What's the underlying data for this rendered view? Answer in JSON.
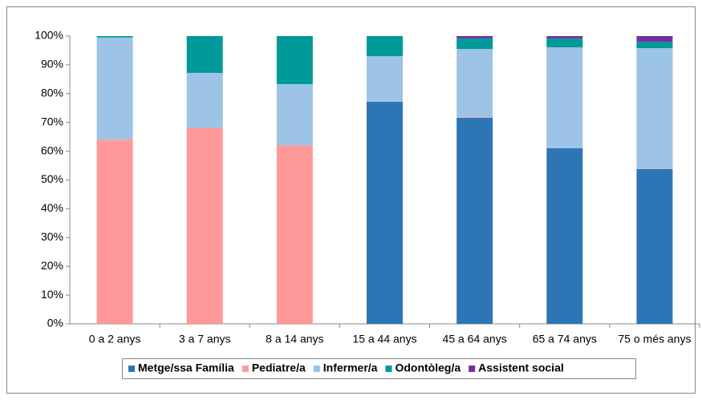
{
  "chart_data": {
    "type": "stacked_bar",
    "categories": [
      "0 a 2 anys",
      "3 a 7 anys",
      "8 a 14 anys",
      "15 a 44 anys",
      "45 a 64 anys",
      "65 a 74 anys",
      "75 o més anys"
    ],
    "series": [
      {
        "name": "Metge/ssa Família",
        "color": "#2e75b6",
        "values": [
          0,
          0,
          0,
          77.2,
          71.6,
          61,
          53.8
        ]
      },
      {
        "name": "Pediatre/a",
        "color": "#ff9999",
        "values": [
          64,
          68,
          62,
          0,
          0.2,
          0,
          0
        ]
      },
      {
        "name": "Infermer/a",
        "color": "#9dc3e6",
        "values": [
          35.5,
          19.2,
          21.3,
          15.8,
          23.7,
          35.1,
          42
        ]
      },
      {
        "name": "Odontòleg/a",
        "color": "#009999",
        "values": [
          0.5,
          12.8,
          16.7,
          7,
          3.7,
          3.1,
          2.2
        ]
      },
      {
        "name": "Assistent social",
        "color": "#7030a0",
        "values": [
          0,
          0,
          0,
          0,
          0.8,
          0.8,
          2
        ]
      }
    ],
    "ylim": [
      0,
      100
    ],
    "yticks": [
      {
        "value": 0,
        "label": "0%"
      },
      {
        "value": 10,
        "label": "10%"
      },
      {
        "value": 20,
        "label": "20%"
      },
      {
        "value": 30,
        "label": "30%"
      },
      {
        "value": 40,
        "label": "40%"
      },
      {
        "value": 50,
        "label": "50%"
      },
      {
        "value": 60,
        "label": "60%"
      },
      {
        "value": 70,
        "label": "70%"
      },
      {
        "value": 80,
        "label": "80%"
      },
      {
        "value": 90,
        "label": "90%"
      },
      {
        "value": 100,
        "label": "100%"
      }
    ],
    "legend": "bottom"
  }
}
